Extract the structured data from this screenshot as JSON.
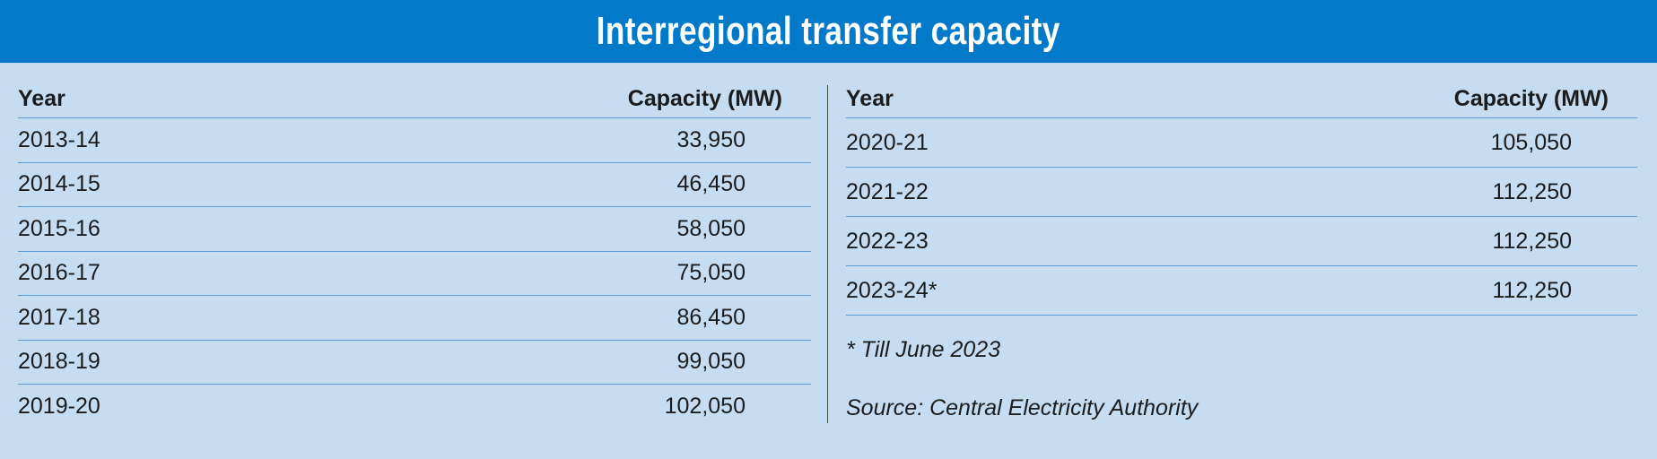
{
  "title": "Interregional transfer capacity",
  "chart_data": {
    "type": "table",
    "title": "Interregional transfer capacity",
    "columns": [
      "Year",
      "Capacity (MW)"
    ],
    "left_table": {
      "headers": [
        "Year",
        "Capacity (MW)"
      ],
      "rows": [
        {
          "year": "2013-14",
          "value": "33,950"
        },
        {
          "year": "2014-15",
          "value": "46,450"
        },
        {
          "year": "2015-16",
          "value": "58,050"
        },
        {
          "year": "2016-17",
          "value": "75,050"
        },
        {
          "year": "2017-18",
          "value": "86,450"
        },
        {
          "year": "2018-19",
          "value": "99,050"
        },
        {
          "year": "2019-20",
          "value": "102,050"
        }
      ]
    },
    "right_table": {
      "headers": [
        "Year",
        "Capacity (MW)"
      ],
      "rows": [
        {
          "year": "2020-21",
          "value": "105,050"
        },
        {
          "year": "2021-22",
          "value": "112,250"
        },
        {
          "year": "2022-23",
          "value": "112,250"
        },
        {
          "year": "2023-24*",
          "value": "112,250"
        }
      ]
    },
    "footnote": "* Till June 2023",
    "source": "Source: Central Electricity Authority"
  },
  "colors": {
    "banner": "#0379c9",
    "background": "#c6dcf1",
    "rule": "#5b9cd6"
  }
}
